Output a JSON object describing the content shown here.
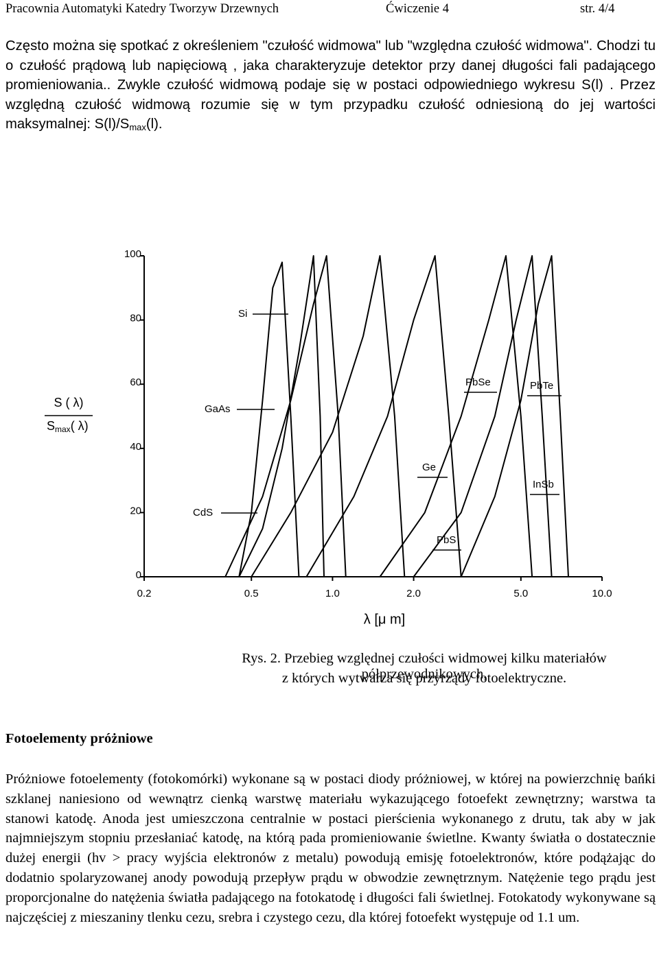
{
  "header": {
    "left": "Pracownia Automatyki Katedry Tworzyw Drzewnych",
    "middle": "Ćwiczenie 4",
    "right": "str. 4/4"
  },
  "intro": {
    "text": "Często można się spotkać z określeniem \"czułość widmowa\" lub \"względna czułość widmowa\". Chodzi tu o czułość prądową lub napięciową , jaka charakteryzuje detektor przy danej długości fali padającego promieniowania.. Zwykle czułość widmową podaje się w postaci odpowiedniego wykresu S(l) . Przez względną czułość widmową rozumie się w tym przypadku czułość odniesioną do jej wartości maksymalnej: S(l)/S",
    "subscript": "max",
    "tail": "(l)."
  },
  "chart_data": {
    "type": "line",
    "xscale": "log",
    "color": "#000000",
    "xlabel": "λ [μ m]",
    "ylabel": {
      "numerator": "S ( λ)",
      "denominator": "S",
      "denominator_sub": "max",
      "denominator_tail": "( λ)"
    },
    "xlim": [
      0.2,
      10
    ],
    "ylim": [
      0,
      100
    ],
    "xticks": [
      0.2,
      0.5,
      {
        "value": 1,
        "label": "1.0"
      },
      {
        "value": 2,
        "label": "2.0"
      },
      {
        "value": 5,
        "label": "5.0"
      },
      {
        "value": 10,
        "label": "10.0"
      }
    ],
    "yticks": [
      0,
      20,
      40,
      60,
      80,
      100
    ],
    "series": [
      {
        "name": "CdS",
        "x": [
          0.45,
          0.5,
          0.55,
          0.6,
          0.65,
          0.7,
          0.75
        ],
        "values": [
          0,
          20,
          55,
          90,
          98,
          50,
          0
        ]
      },
      {
        "name": "Si",
        "x": [
          0.4,
          0.55,
          0.7,
          0.85,
          0.95,
          1.05,
          1.12
        ],
        "values": [
          0,
          25,
          55,
          85,
          100,
          50,
          0
        ]
      },
      {
        "name": "GaAs",
        "x": [
          0.45,
          0.55,
          0.65,
          0.75,
          0.85,
          0.9,
          0.93
        ],
        "values": [
          0,
          15,
          40,
          70,
          100,
          50,
          0
        ]
      },
      {
        "name": "Ge",
        "x": [
          0.5,
          0.7,
          1.0,
          1.3,
          1.5,
          1.7,
          1.85
        ],
        "values": [
          0,
          20,
          45,
          75,
          100,
          50,
          0
        ]
      },
      {
        "name": "PbS",
        "x": [
          0.8,
          1.2,
          1.6,
          2.0,
          2.4,
          2.7,
          3.0
        ],
        "values": [
          0,
          25,
          50,
          80,
          100,
          50,
          0
        ]
      },
      {
        "name": "PbSe",
        "x": [
          1.5,
          2.2,
          3.0,
          3.8,
          4.4,
          5.0,
          5.5
        ],
        "values": [
          0,
          20,
          50,
          80,
          100,
          50,
          0
        ]
      },
      {
        "name": "PbTe",
        "x": [
          2.0,
          3.0,
          4.0,
          4.8,
          5.5,
          6.0,
          6.5
        ],
        "values": [
          0,
          20,
          50,
          80,
          100,
          50,
          0
        ]
      },
      {
        "name": "InSb",
        "x": [
          3.0,
          4.0,
          5.0,
          5.8,
          6.5,
          7.0,
          7.5
        ],
        "values": [
          0,
          25,
          55,
          85,
          100,
          50,
          0
        ]
      }
    ]
  },
  "caption": [
    "Rys. 2. Przebieg względnej czułości widmowej kilku materiałów półprzewodnikowych,",
    "z których wytwarza się przyrządy fotoelektryczne."
  ],
  "section": {
    "heading": "Fotoelementy próżniowe",
    "text": "Próżniowe fotoelementy (fotokomórki) wykonane są w postaci diody próżniowej, w której na powierzchnię bańki szklanej naniesiono od wewnątrz cienką warstwę materiału wykazującego fotoefekt zewnętrzny; warstwa ta stanowi katodę. Anoda jest umieszczona centralnie w postaci pierścienia wykonanego z drutu, tak aby w jak najmniejszym stopniu przesłaniać katodę, na którą pada promieniowanie świetlne. Kwanty światła o dostatecznie dużej energii (hv > pracy wyjścia elektronów z metalu) powodują emisję fotoelektronów, które podążając do dodatnio spolaryzowanej anody powodują przepływ prądu w obwodzie zewnętrznym. Natężenie tego prądu jest proporcjonalne do natężenia światła padającego na fotokatodę i długości fali świetlnej. Fotokatody wykonywane są najczęściej z mieszaniny tlenku cezu, srebra i czystego cezu, dla której fotoefekt występuje od 1.1 um."
  }
}
